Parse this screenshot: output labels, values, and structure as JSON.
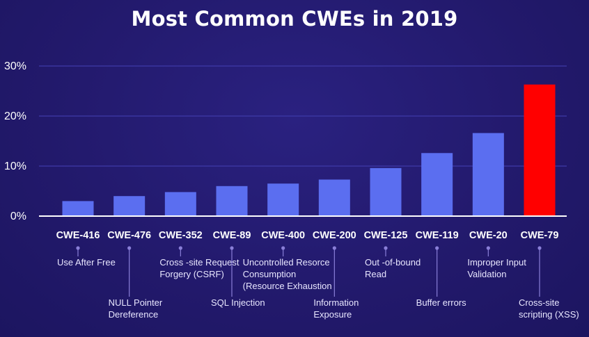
{
  "chart_data": {
    "type": "bar",
    "title": "Most Common CWEs in 2019",
    "xlabel": "",
    "ylabel": "",
    "ylim": [
      0,
      30
    ],
    "y_ticks": [
      "0%",
      "10%",
      "20%",
      "30%"
    ],
    "y_tick_values": [
      0,
      10,
      20,
      30
    ],
    "grid": true,
    "categories": [
      "CWE-416",
      "CWE-476",
      "CWE-352",
      "CWE-89",
      "CWE-400",
      "CWE-200",
      "CWE-125",
      "CWE-119",
      "CWE-20",
      "CWE-79"
    ],
    "descriptions": [
      [
        "Use After Free"
      ],
      [
        "NULL Pointer",
        "Dereference"
      ],
      [
        "Cross -site Request",
        "Forgery (CSRF)"
      ],
      [
        "SQL Injection"
      ],
      [
        "Uncontrolled Resorce",
        "Consumption",
        "(Resource Exhaustion"
      ],
      [
        "Information",
        "Exposure"
      ],
      [
        "Out -of-bound",
        "Read"
      ],
      [
        "Buffer errors"
      ],
      [
        "Improper Input",
        "Validation"
      ],
      [
        "Cross-site",
        "scripting (XSS)"
      ]
    ],
    "values": [
      3.0,
      4.0,
      4.8,
      6.0,
      6.5,
      7.3,
      9.6,
      12.6,
      16.6,
      26.3
    ],
    "bar_color": "#5b6ef0",
    "highlight_color": "#ff0000",
    "highlight_index": 9,
    "background_color": "#22196b"
  }
}
